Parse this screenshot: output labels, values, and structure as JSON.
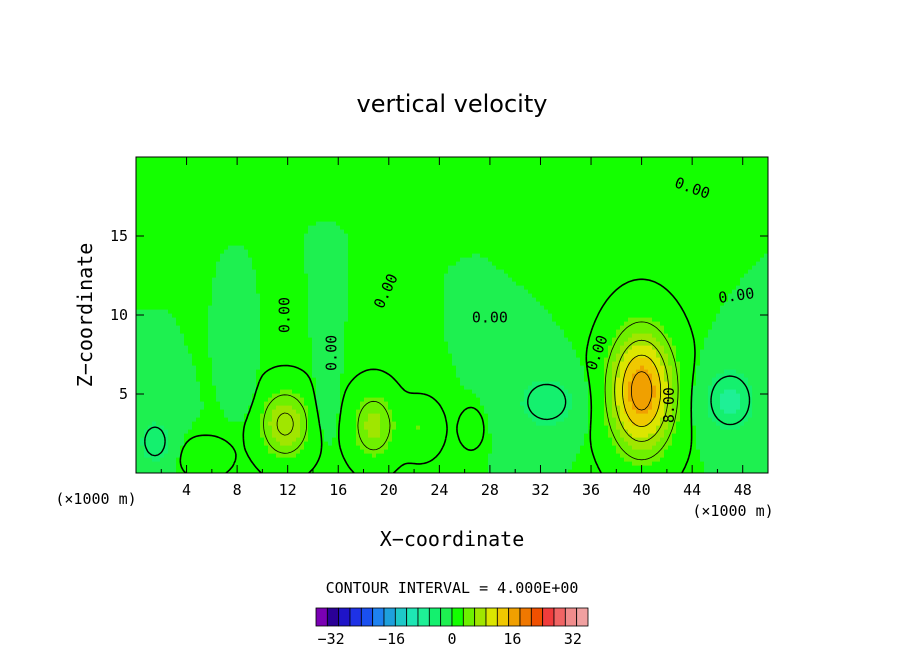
{
  "chart_data": {
    "type": "heatmap",
    "title": "vertical velocity",
    "xlabel": "X−coordinate",
    "ylabel": "Z−coordinate",
    "x_unit": "(×1000 m)",
    "xlim": [
      0,
      50
    ],
    "ylim": [
      0,
      20
    ],
    "x_ticks": [
      4,
      8,
      12,
      16,
      20,
      24,
      28,
      32,
      36,
      40,
      44,
      48
    ],
    "y_ticks": [
      5,
      10,
      15
    ],
    "contour_interval_text": "CONTOUR INTERVAL = 4.000E+00",
    "contour_interval": 4,
    "contour_labels": [
      {
        "text": "0.00",
        "x": 44,
        "y": 18.0,
        "angle": 20
      },
      {
        "text": "0.00",
        "x": 47.5,
        "y": 11.2,
        "angle": -8
      },
      {
        "text": "0.00",
        "x": 19.8,
        "y": 11.5,
        "angle": -65
      },
      {
        "text": "0.00",
        "x": 28,
        "y": 9.8,
        "angle": 0
      },
      {
        "text": "0.00",
        "x": 11.8,
        "y": 10.0,
        "angle": -90
      },
      {
        "text": "0.00",
        "x": 15.5,
        "y": 7.6,
        "angle": -90
      },
      {
        "text": "0.00",
        "x": 36.5,
        "y": 7.6,
        "angle": -70
      },
      {
        "text": "8.00",
        "x": 42.2,
        "y": 4.3,
        "angle": -90
      }
    ],
    "features": [
      {
        "name": "updraft",
        "x_center": 40.0,
        "z_center": 5.2,
        "x_radius": 3.0,
        "z_radius": 4.5,
        "peak": 18
      },
      {
        "name": "updraft",
        "x_center": 11.8,
        "z_center": 3.1,
        "x_radius": 2.4,
        "z_radius": 2.6,
        "peak": 9
      },
      {
        "name": "updraft",
        "x_center": 18.8,
        "z_center": 3.0,
        "x_radius": 2.1,
        "z_radius": 2.6,
        "peak": 7
      },
      {
        "name": "updraft",
        "x_center": 22.5,
        "z_center": 2.8,
        "x_radius": 1.8,
        "z_radius": 1.9,
        "peak": 3
      },
      {
        "name": "updraft",
        "x_center": 5.5,
        "z_center": 1.0,
        "x_radius": 2.0,
        "z_radius": 1.2,
        "peak": 3
      },
      {
        "name": "updraft",
        "x_center": 26.5,
        "z_center": 2.8,
        "x_radius": 1.0,
        "z_radius": 1.3,
        "peak": 2
      },
      {
        "name": "downdraft",
        "x_center": 47.0,
        "z_center": 4.6,
        "x_radius": 2.6,
        "z_radius": 2.6,
        "peak": -7
      },
      {
        "name": "downdraft",
        "x_center": 32.5,
        "z_center": 4.5,
        "x_radius": 3.0,
        "z_radius": 2.2,
        "peak": -6
      },
      {
        "name": "downdraft",
        "x_center": 1.5,
        "z_center": 2.0,
        "x_radius": 1.6,
        "z_radius": 1.8,
        "peak": -6
      },
      {
        "name": "downdraft",
        "x_center": 8.5,
        "z_center": 5.5,
        "x_radius": 1.0,
        "z_radius": 2.0,
        "peak": -2
      },
      {
        "name": "downdraft",
        "x_center": 15.0,
        "z_center": 4.5,
        "x_radius": 1.0,
        "z_radius": 2.5,
        "peak": -2
      }
    ],
    "colorbar": {
      "tick_labels": [
        "−32",
        "−16",
        "0",
        "16",
        "32"
      ],
      "tick_values": [
        -32,
        -16,
        0,
        16,
        32
      ],
      "min": -36,
      "max": 36,
      "colors": [
        "#7a00b4",
        "#2a0096",
        "#1f14c8",
        "#1e32e6",
        "#1a50f0",
        "#1e82f0",
        "#1ea0dc",
        "#1ec8c8",
        "#1ee6b4",
        "#1ef096",
        "#14f06e",
        "#1ef050",
        "#14ff00",
        "#6ef000",
        "#a0e600",
        "#dce600",
        "#f0c800",
        "#f0a000",
        "#f07800",
        "#f05000",
        "#f03c3c",
        "#f06464",
        "#f08c8c",
        "#f0a0a0"
      ]
    }
  }
}
